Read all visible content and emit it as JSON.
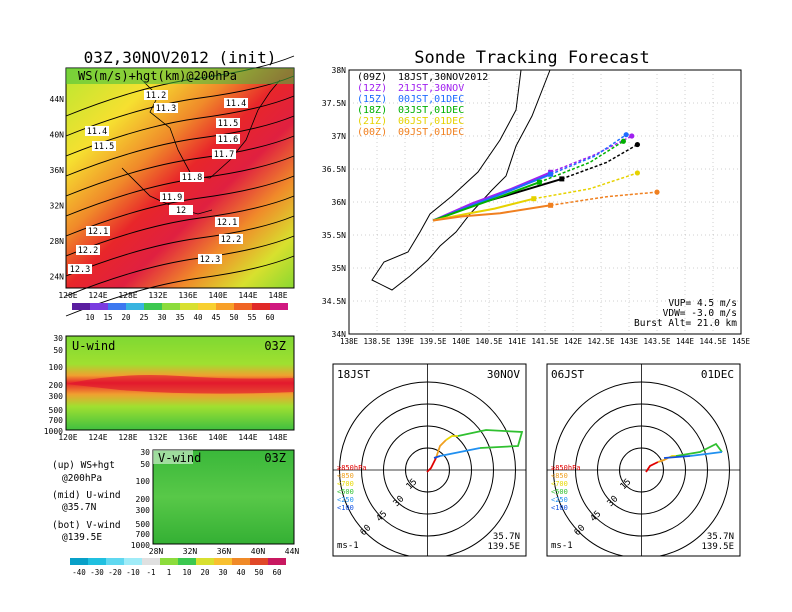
{
  "left": {
    "main_title": "03Z,30NOV2012 (init)",
    "ws_panel": {
      "label": "WS(m/s)+hgt(km)@200hPa",
      "lat_ticks": [
        "44N",
        "40N",
        "36N",
        "32N",
        "28N",
        "24N"
      ],
      "lon_ticks": [
        "120E",
        "124E",
        "128E",
        "132E",
        "136E",
        "140E",
        "144E",
        "148E"
      ],
      "hgt_labels": [
        "11.2",
        "11.3",
        "11.4",
        "11.4",
        "11.5",
        "11.5",
        "11.6",
        "11.7",
        "11.8",
        "11.9",
        "12",
        "12.1",
        "12.1",
        "12.2",
        "12.2",
        "12.3",
        "12.3"
      ],
      "colorbar": [
        "10",
        "15",
        "20",
        "25",
        "30",
        "35",
        "40",
        "45",
        "50",
        "55",
        "60"
      ]
    },
    "u_panel": {
      "label": "U-wind",
      "time": "03Z",
      "p_ticks": [
        "30",
        "50",
        "100",
        "200",
        "300",
        "500",
        "700",
        "1000"
      ],
      "lon_ticks": [
        "120E",
        "124E",
        "128E",
        "132E",
        "136E",
        "140E",
        "144E",
        "148E"
      ]
    },
    "v_panel": {
      "label": "V-wind",
      "time": "03Z",
      "p_ticks": [
        "30",
        "50",
        "100",
        "200",
        "300",
        "500",
        "700",
        "1000"
      ],
      "lat_ticks": [
        "28N",
        "32N",
        "36N",
        "40N",
        "44N"
      ],
      "colorbar": [
        "-40",
        "-30",
        "-20",
        "-10",
        "-1",
        "1",
        "10",
        "20",
        "30",
        "40",
        "50",
        "60"
      ]
    },
    "legend_lines": [
      "(up) WS+hgt",
      "@200hPa",
      "(mid) U-wind",
      "@35.7N",
      "(bot) V-wind",
      "@139.5E"
    ]
  },
  "forecast": {
    "title": "Sonde Tracking Forecast",
    "lat_ticks": [
      "38N",
      "37.5N",
      "37N",
      "36.5N",
      "36N",
      "35.5N",
      "35N",
      "34.5N",
      "34N"
    ],
    "lon_ticks": [
      "138E",
      "138.5E",
      "139E",
      "139.5E",
      "140E",
      "140.5E",
      "141E",
      "141.5E",
      "142E",
      "142.5E",
      "143E",
      "143.5E",
      "144E",
      "144.5E",
      "145E"
    ],
    "runs": [
      {
        "code": "(09Z)",
        "label": "18JST,30NOV2012",
        "color": "#000000"
      },
      {
        "code": "(12Z)",
        "label": "21JST,30NOV",
        "color": "#a020f0"
      },
      {
        "code": "(15Z)",
        "label": "00JST,01DEC",
        "color": "#1e6cff"
      },
      {
        "code": "(18Z)",
        "label": "03JST,01DEC",
        "color": "#00b000"
      },
      {
        "code": "(21Z)",
        "label": "06JST,01DEC",
        "color": "#e6d200"
      },
      {
        "code": "(00Z)",
        "label": "09JST,01DEC",
        "color": "#f08020"
      }
    ],
    "params": [
      "VUP= 4.5 m/s",
      "VDW= -3.0 m/s",
      "Burst Alt= 21.0 km"
    ]
  },
  "hodographs": [
    {
      "time": "18JST",
      "date": "30NOV",
      "units": "ms-1",
      "lat": "35.7N",
      "lon": "139.5E",
      "rings": [
        "15",
        "30",
        "45",
        "60"
      ],
      "levels": [
        "≥850hPa",
        "<850",
        "<700",
        "<500",
        "<250",
        "<100"
      ]
    },
    {
      "time": "06JST",
      "date": "01DEC",
      "units": "ms-1",
      "lat": "35.7N",
      "lon": "139.5E",
      "rings": [
        "15",
        "30",
        "45",
        "60"
      ],
      "levels": [
        "≥850hPa",
        "<850",
        "<700",
        "<500",
        "<250",
        "<100"
      ]
    }
  ],
  "chart_data": [
    {
      "type": "line",
      "title": "Sonde Tracking Forecast",
      "xlabel": "",
      "ylabel": "",
      "xlim": [
        138,
        145
      ],
      "ylim": [
        34,
        38
      ],
      "series": [
        {
          "name": "(09Z) 18JST,30NOV2012",
          "x": [
            139.5,
            140.2,
            140.9,
            141.8,
            142.6,
            143.15
          ],
          "y": [
            35.72,
            35.95,
            36.12,
            36.35,
            36.6,
            36.87
          ]
        },
        {
          "name": "(12Z) 21JST,30NOV",
          "x": [
            139.5,
            140.2,
            140.9,
            141.6,
            142.4,
            143.05
          ],
          "y": [
            35.72,
            35.98,
            36.2,
            36.45,
            36.72,
            37.0
          ]
        },
        {
          "name": "(15Z) 00JST,01DEC",
          "x": [
            139.5,
            140.2,
            140.9,
            141.6,
            142.4,
            142.95
          ],
          "y": [
            35.72,
            35.95,
            36.18,
            36.42,
            36.7,
            37.02
          ]
        },
        {
          "name": "(18Z) 03JST,01DEC",
          "x": [
            139.5,
            140.1,
            140.7,
            141.4,
            142.3,
            142.9
          ],
          "y": [
            35.72,
            35.9,
            36.08,
            36.3,
            36.6,
            36.92
          ]
        },
        {
          "name": "(21Z) 06JST,01DEC",
          "x": [
            139.5,
            140.1,
            140.6,
            141.3,
            142.3,
            143.15
          ],
          "y": [
            35.72,
            35.82,
            35.9,
            36.05,
            36.2,
            36.44
          ]
        },
        {
          "name": "(00Z) 09JST,01DEC",
          "x": [
            139.5,
            140.0,
            140.7,
            141.6,
            142.6,
            143.5
          ],
          "y": [
            35.72,
            35.78,
            35.83,
            35.95,
            36.08,
            36.15
          ]
        }
      ]
    }
  ]
}
